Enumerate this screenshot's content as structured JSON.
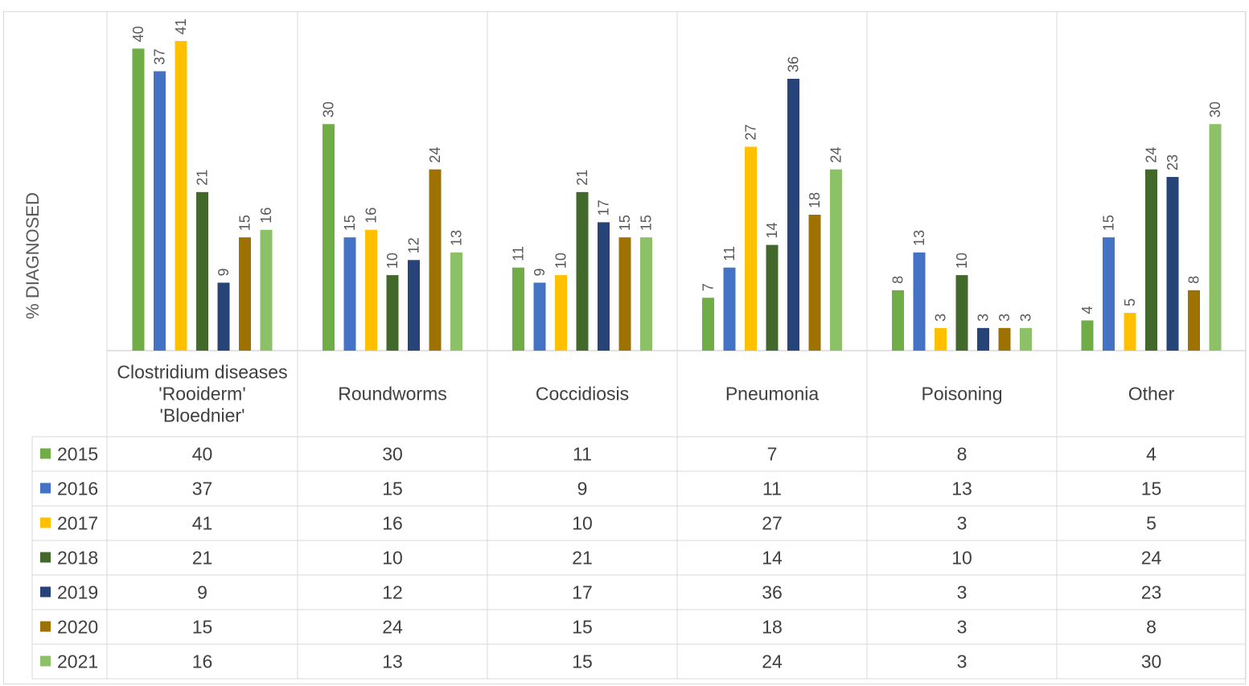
{
  "chart_data": {
    "type": "bar",
    "title": "",
    "xlabel": "",
    "ylabel": "% DIAGNOSED",
    "ylim": [
      0,
      45
    ],
    "grid": false,
    "legend": "table-left",
    "categories": [
      [
        "Clostridium diseases",
        "'Rooiderm'",
        "'Bloednier'"
      ],
      [
        "Roundworms"
      ],
      [
        "Coccidiosis"
      ],
      [
        "Pneumonia"
      ],
      [
        "Poisoning"
      ],
      [
        "Other"
      ]
    ],
    "series": [
      {
        "name": "2015",
        "color": "#70ad47",
        "values": [
          40,
          30,
          11,
          7,
          8,
          4
        ]
      },
      {
        "name": "2016",
        "color": "#4472c4",
        "values": [
          37,
          15,
          9,
          11,
          13,
          15
        ]
      },
      {
        "name": "2017",
        "color": "#ffc000",
        "values": [
          41,
          16,
          10,
          27,
          3,
          5
        ]
      },
      {
        "name": "2018",
        "color": "#43682b",
        "values": [
          21,
          10,
          21,
          14,
          10,
          24
        ]
      },
      {
        "name": "2019",
        "color": "#264478",
        "values": [
          9,
          12,
          17,
          36,
          3,
          23
        ]
      },
      {
        "name": "2020",
        "color": "#9e7202",
        "values": [
          15,
          24,
          15,
          18,
          3,
          8
        ]
      },
      {
        "name": "2021",
        "color": "#8cc167",
        "values": [
          16,
          13,
          15,
          24,
          3,
          30
        ]
      }
    ]
  }
}
